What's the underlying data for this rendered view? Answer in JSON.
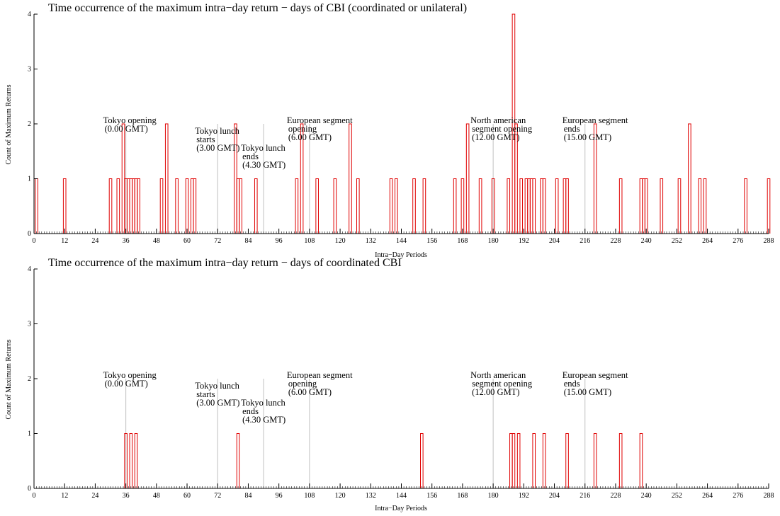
{
  "chart_data": [
    {
      "type": "bar",
      "title": "Time occurrence of the maximum intra−day return − days of CBI (coordinated or unilateral)",
      "xlabel": "Intra−Day Periods",
      "ylabel": "Count of Maximum Returns",
      "xlim": [
        0,
        288
      ],
      "ylim": [
        0,
        4
      ],
      "xticks": [
        0,
        12,
        24,
        36,
        48,
        60,
        72,
        84,
        96,
        108,
        120,
        132,
        144,
        156,
        168,
        180,
        192,
        204,
        216,
        228,
        240,
        252,
        264,
        276,
        288
      ],
      "yticks": [
        0,
        1,
        2,
        3,
        4
      ],
      "bar_color": "#e00000",
      "x": [
        1,
        12,
        30,
        33,
        35,
        36,
        37,
        38,
        39,
        40,
        41,
        50,
        52,
        56,
        60,
        62,
        63,
        79,
        80,
        81,
        87,
        103,
        105,
        111,
        118,
        124,
        127,
        140,
        142,
        149,
        153,
        165,
        168,
        170,
        175,
        180,
        186,
        188,
        189,
        191,
        193,
        194,
        195,
        196,
        199,
        200,
        205,
        208,
        209,
        220,
        230,
        238,
        239,
        240,
        246,
        253,
        257,
        261,
        263,
        279,
        288
      ],
      "values": [
        1,
        1,
        1,
        1,
        2,
        1,
        1,
        1,
        1,
        1,
        1,
        1,
        2,
        1,
        1,
        1,
        1,
        2,
        1,
        1,
        1,
        1,
        2,
        1,
        1,
        2,
        1,
        1,
        1,
        1,
        1,
        1,
        1,
        2,
        1,
        1,
        1,
        4,
        2,
        1,
        1,
        1,
        1,
        1,
        1,
        1,
        1,
        1,
        1,
        2,
        1,
        1,
        1,
        1,
        1,
        1,
        2,
        1,
        1,
        1,
        1
      ],
      "markers": [
        {
          "x": 36,
          "lines": [
            "Tokyo opening",
            "(0.00 GMT)"
          ]
        },
        {
          "x": 72,
          "lines": [
            "Tokyo lunch",
            "starts",
            "(3.00 GMT)"
          ]
        },
        {
          "x": 90,
          "lines": [
            "Tokyo lunch",
            "ends",
            "(4.30 GMT)"
          ]
        },
        {
          "x": 108,
          "lines": [
            "European segment",
            "opening",
            "(6.00 GMT)"
          ]
        },
        {
          "x": 180,
          "lines": [
            "North american",
            "segment opening",
            "(12.00 GMT)"
          ]
        },
        {
          "x": 216,
          "lines": [
            "European segment",
            "ends",
            "(15.00 GMT)"
          ]
        }
      ],
      "marker_color": "#c0c0c0"
    },
    {
      "type": "bar",
      "title": "Time occurrence of the maximum intra−day return − days of coordinated CBI",
      "xlabel": "Intra−Day Periods",
      "ylabel": "Count of Maximum Returns",
      "xlim": [
        0,
        288
      ],
      "ylim": [
        0,
        4
      ],
      "xticks": [
        0,
        12,
        24,
        36,
        48,
        60,
        72,
        84,
        96,
        108,
        120,
        132,
        144,
        156,
        168,
        180,
        192,
        204,
        216,
        228,
        240,
        252,
        264,
        276,
        288
      ],
      "yticks": [
        0,
        1,
        2,
        3,
        4
      ],
      "bar_color": "#e00000",
      "x": [
        36,
        38,
        40,
        80,
        152,
        187,
        188,
        190,
        196,
        200,
        209,
        220,
        230,
        238
      ],
      "values": [
        1,
        1,
        1,
        1,
        1,
        1,
        1,
        1,
        1,
        1,
        1,
        1,
        1,
        1
      ],
      "markers": [
        {
          "x": 36,
          "lines": [
            "Tokyo opening",
            "(0.00 GMT)"
          ]
        },
        {
          "x": 72,
          "lines": [
            "Tokyo lunch",
            "starts",
            "(3.00 GMT)"
          ]
        },
        {
          "x": 90,
          "lines": [
            "Tokyo lunch",
            "ends",
            "(4.30 GMT)"
          ]
        },
        {
          "x": 108,
          "lines": [
            "European segment",
            "opening",
            "(6.00 GMT)"
          ]
        },
        {
          "x": 180,
          "lines": [
            "North american",
            "segment opening",
            "(12.00 GMT)"
          ]
        },
        {
          "x": 216,
          "lines": [
            "European segment",
            "ends",
            "(15.00 GMT)"
          ]
        }
      ],
      "marker_color": "#c0c0c0"
    }
  ]
}
